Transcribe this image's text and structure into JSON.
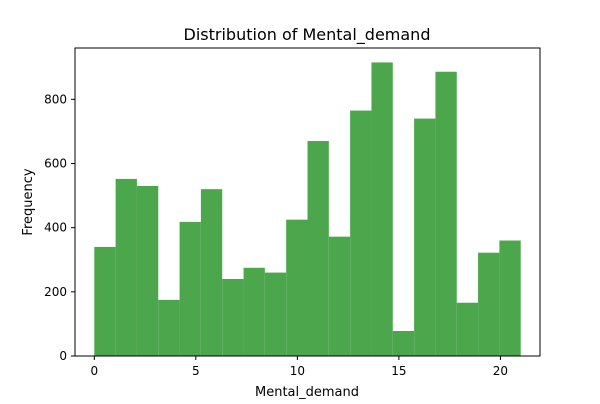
{
  "chart_data": {
    "type": "bar",
    "title": "Distribution of Mental_demand",
    "xlabel": "Mental_demand",
    "ylabel": "Frequency",
    "bar_color": "#4ca64c",
    "grid": false,
    "xlim": [
      -0.95,
      21.95
    ],
    "ylim": [
      0,
      960
    ],
    "xticks": [
      0,
      5,
      10,
      15,
      20
    ],
    "yticks": [
      0,
      200,
      400,
      600,
      800
    ],
    "bin_edges": [
      0,
      1.05,
      2.1,
      3.15,
      4.2,
      5.25,
      6.3,
      7.35,
      8.4,
      9.45,
      10.5,
      11.55,
      12.6,
      13.65,
      14.7,
      15.75,
      16.8,
      17.85,
      18.9,
      19.95,
      21
    ],
    "values": [
      340,
      552,
      530,
      175,
      418,
      520,
      240,
      275,
      260,
      425,
      670,
      372,
      765,
      915,
      78,
      740,
      886,
      166,
      322,
      360
    ]
  }
}
